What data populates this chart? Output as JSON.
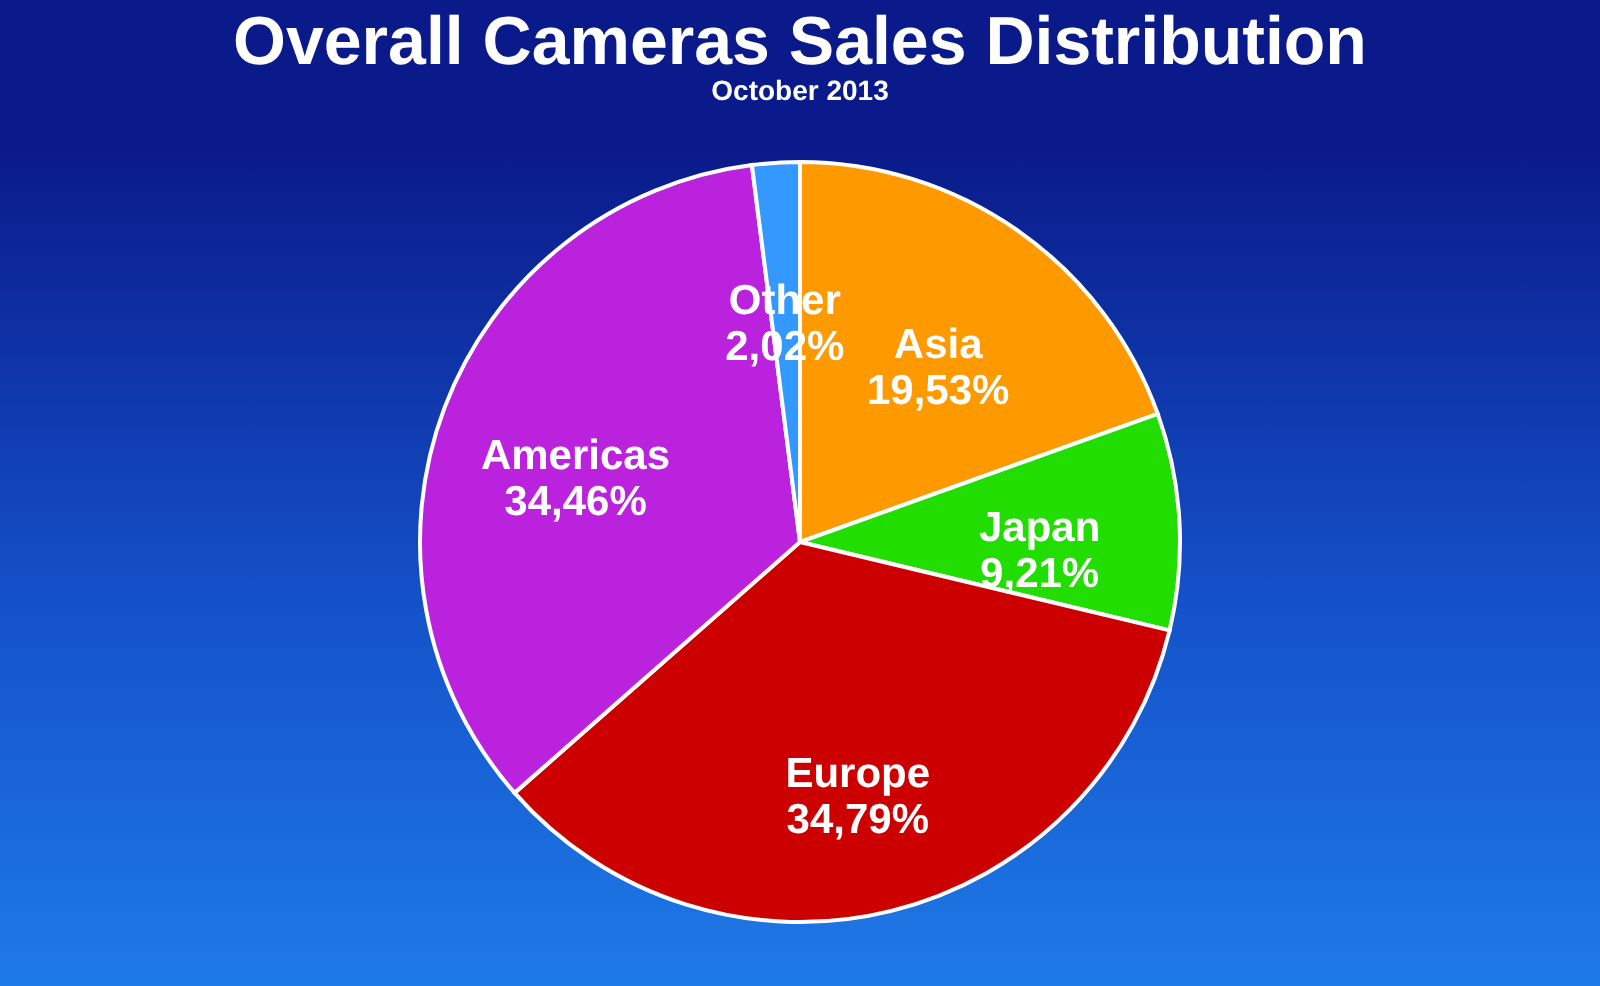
{
  "chart_data": {
    "type": "pie",
    "title": "Overall Cameras Sales Distribution",
    "subtitle": "October 2013",
    "categories": [
      "Asia",
      "Japan",
      "Europe",
      "Americas",
      "Other"
    ],
    "values": [
      19.53,
      9.21,
      34.79,
      34.46,
      2.02
    ],
    "value_labels": [
      "19,53%",
      "9,21%",
      "34,79%",
      "34,46%",
      "2,02%"
    ],
    "colors": [
      "#ff9900",
      "#22dd00",
      "#cc0000",
      "#bb22dd",
      "#3399ff"
    ],
    "legend": false
  }
}
